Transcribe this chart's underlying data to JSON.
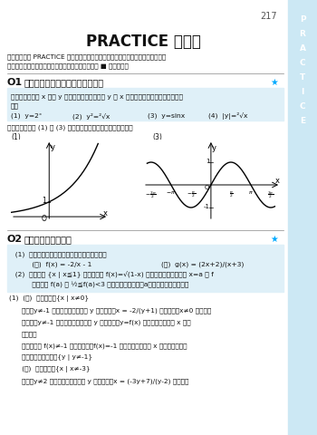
{
  "page_number": "217",
  "title": "PRACTICE の解答",
  "sidebar_color": "#cce8f4",
  "sidebar_text": [
    "P",
    "R",
    "A",
    "C",
    "T",
    "I",
    "C",
    "E"
  ],
  "sidebar_text_color": "#5aaacc",
  "background_color": "#ffffff",
  "bullet1": "・本文各章の PRACTICE 全問について，問題文を再掲し，詳解，証明を載せた。",
  "bullet2": "・最終の答などは太字にしてある。証明の最後には ■ を付した。",
  "q1_label": "O1",
  "q1_title": "関数と対応関係（関数のグラフ）",
  "q1_star_color": "#00aaff",
  "q1_box_color": "#dff0f8",
  "q1_box_text_line1": "次の式で決まる x から y への対応関係のうち， y が x の関数になるもののグラフをか",
  "q1_box_text_line2": "け。",
  "q1_item1": "(1)  y=2ˣ",
  "q1_item2": "(2)  y²=²√x",
  "q1_item3": "(3)  y=sinx",
  "q1_item4": "(4)  |y|=²√x",
  "q1_answer_text": "関数になるのは (1) と (3) で，グラフは下の図のようになる。",
  "q2_label": "O2",
  "q2_title": "関数の定義域と値域",
  "q2_star_color": "#00aaff",
  "q2_box_color": "#dff0f8",
  "q2_box_line1": "  (1)  次の関数の定義域を答え，値域を求めよ。",
  "q2_box_line2_a": "         (ア)  f(x) = -2/x - 1",
  "q2_box_line2_b": "(イ)  g(x) = (2x+2)/(x+3)",
  "q2_box_line3": "  (2)  定義域を {x | x≦1} とする関数 f(x)=√(1-x) について，定義域内の x=a の f",
  "q2_box_line4": "         による像 f(a) が ½≦f(a)<3 を満たすような実数aの値の範囲を求めよ。",
  "sol_lines": [
    {
      "indent": 0,
      "text": "(1)  (ア)  定義域　　{x | x≠0}"
    },
    {
      "indent": 1,
      "text": "次に，y≠-1 を満たす任意の実数 y に対して，x = -2/(y+1) とすると，x≠0 となる。"
    },
    {
      "indent": 1,
      "text": "よって，y≠-1 を満たす任意の実数 y に対して，y=f(x) となる定義域内の x が存"
    },
    {
      "indent": 1,
      "text": "在する。"
    },
    {
      "indent": 1,
      "text": "また，常に f(x)≠-1 であるから，f(x)=-1 となる定義域内の x は存在しない。"
    },
    {
      "indent": 1,
      "text": "よって，値域は　　{y | y≠-1}"
    },
    {
      "indent": 0,
      "text": "      (イ)  定義域　　{x | x≠-3}"
    },
    {
      "indent": 1,
      "text": "次に，y≠2 を満たす任意の実数 y に対して，x = (-3y+7)/(y-2) とする。"
    }
  ]
}
